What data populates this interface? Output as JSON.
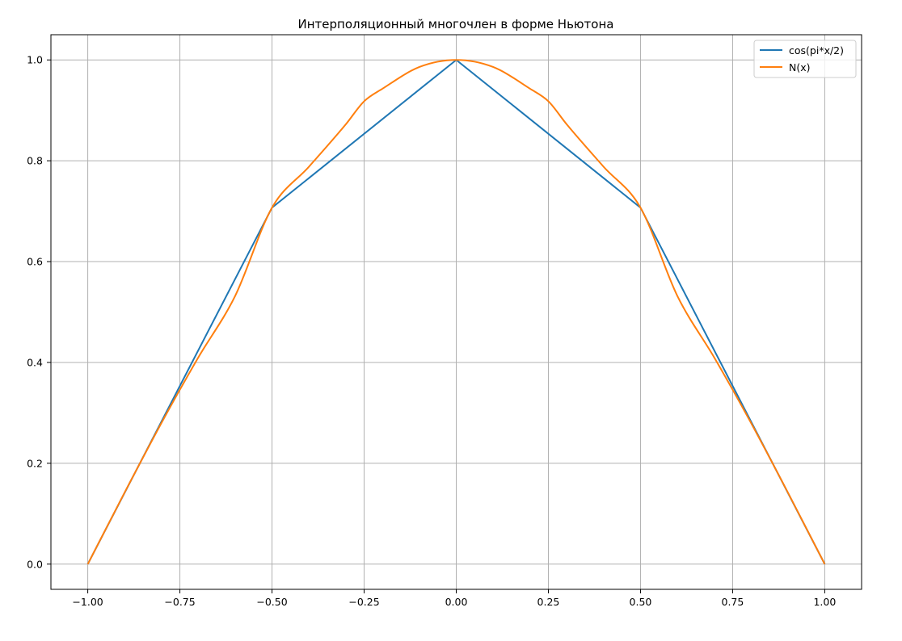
{
  "chart_data": {
    "type": "line",
    "title": "Интерполяционный многочлен в форме Ньютона",
    "xlabel": "",
    "ylabel": "",
    "xlim": [
      -1.1,
      1.1
    ],
    "ylim": [
      -0.05,
      1.05
    ],
    "grid": true,
    "legend_position": "top-right",
    "x_ticks": [
      -1.0,
      -0.75,
      -0.5,
      -0.25,
      0.0,
      0.25,
      0.5,
      0.75,
      1.0
    ],
    "x_tick_labels": [
      "−1.00",
      "−0.75",
      "−0.50",
      "−0.25",
      "0.00",
      "0.25",
      "0.50",
      "0.75",
      "1.00"
    ],
    "y_ticks": [
      0.0,
      0.2,
      0.4,
      0.6,
      0.8,
      1.0
    ],
    "y_tick_labels": [
      "0.0",
      "0.2",
      "0.4",
      "0.6",
      "0.8",
      "1.0"
    ],
    "series": [
      {
        "name": "cos(pi*x/2)",
        "color": "#1f77b4",
        "x": [
          -1.0,
          -0.5,
          0.0,
          0.5,
          1.0
        ],
        "y": [
          0.0,
          0.707,
          1.0,
          0.707,
          0.0
        ]
      },
      {
        "name": "N(x)",
        "color": "#ff7f0e",
        "x": [
          -1.0,
          -0.9,
          -0.8,
          -0.75,
          -0.7,
          -0.6,
          -0.5,
          -0.4,
          -0.3,
          -0.25,
          -0.2,
          -0.1,
          0.0,
          0.1,
          0.2,
          0.25,
          0.3,
          0.4,
          0.5,
          0.6,
          0.7,
          0.75,
          0.8,
          0.9,
          1.0
        ],
        "y": [
          0.0,
          0.142,
          0.28,
          0.346,
          0.41,
          0.532,
          0.707,
          0.788,
          0.872,
          0.918,
          0.943,
          0.986,
          1.0,
          0.986,
          0.943,
          0.918,
          0.872,
          0.788,
          0.707,
          0.532,
          0.41,
          0.346,
          0.28,
          0.142,
          0.0
        ]
      }
    ]
  }
}
